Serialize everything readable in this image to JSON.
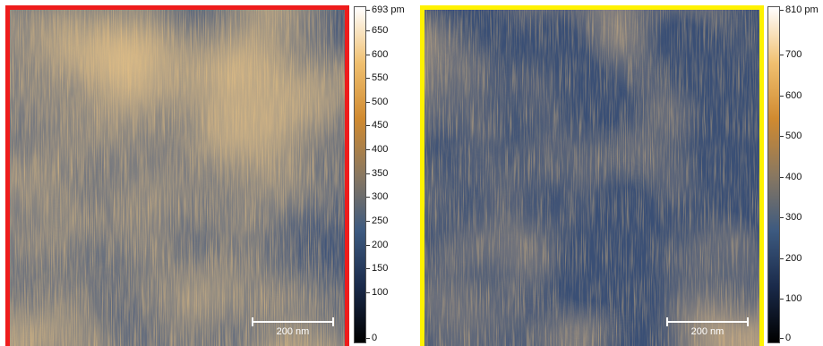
{
  "panels": [
    {
      "id": "left",
      "border_color": "#ee1c1c",
      "scale_bar_label": "200 nm",
      "colorbar": {
        "max_label": "693 pm",
        "max_value": 693,
        "ticks": [
          650,
          600,
          550,
          500,
          450,
          400,
          350,
          300,
          250,
          200,
          150,
          100,
          0
        ]
      }
    },
    {
      "id": "right",
      "border_color": "#fff200",
      "scale_bar_label": "200 nm",
      "colorbar": {
        "max_label": "810 pm",
        "max_value": 810,
        "ticks": [
          700,
          600,
          500,
          400,
          300,
          200,
          100,
          0
        ]
      }
    }
  ],
  "colormap": [
    "#000000",
    "#1a2a4a",
    "#3d5a80",
    "#8a7860",
    "#d08a30",
    "#f0c070",
    "#ffffff"
  ]
}
